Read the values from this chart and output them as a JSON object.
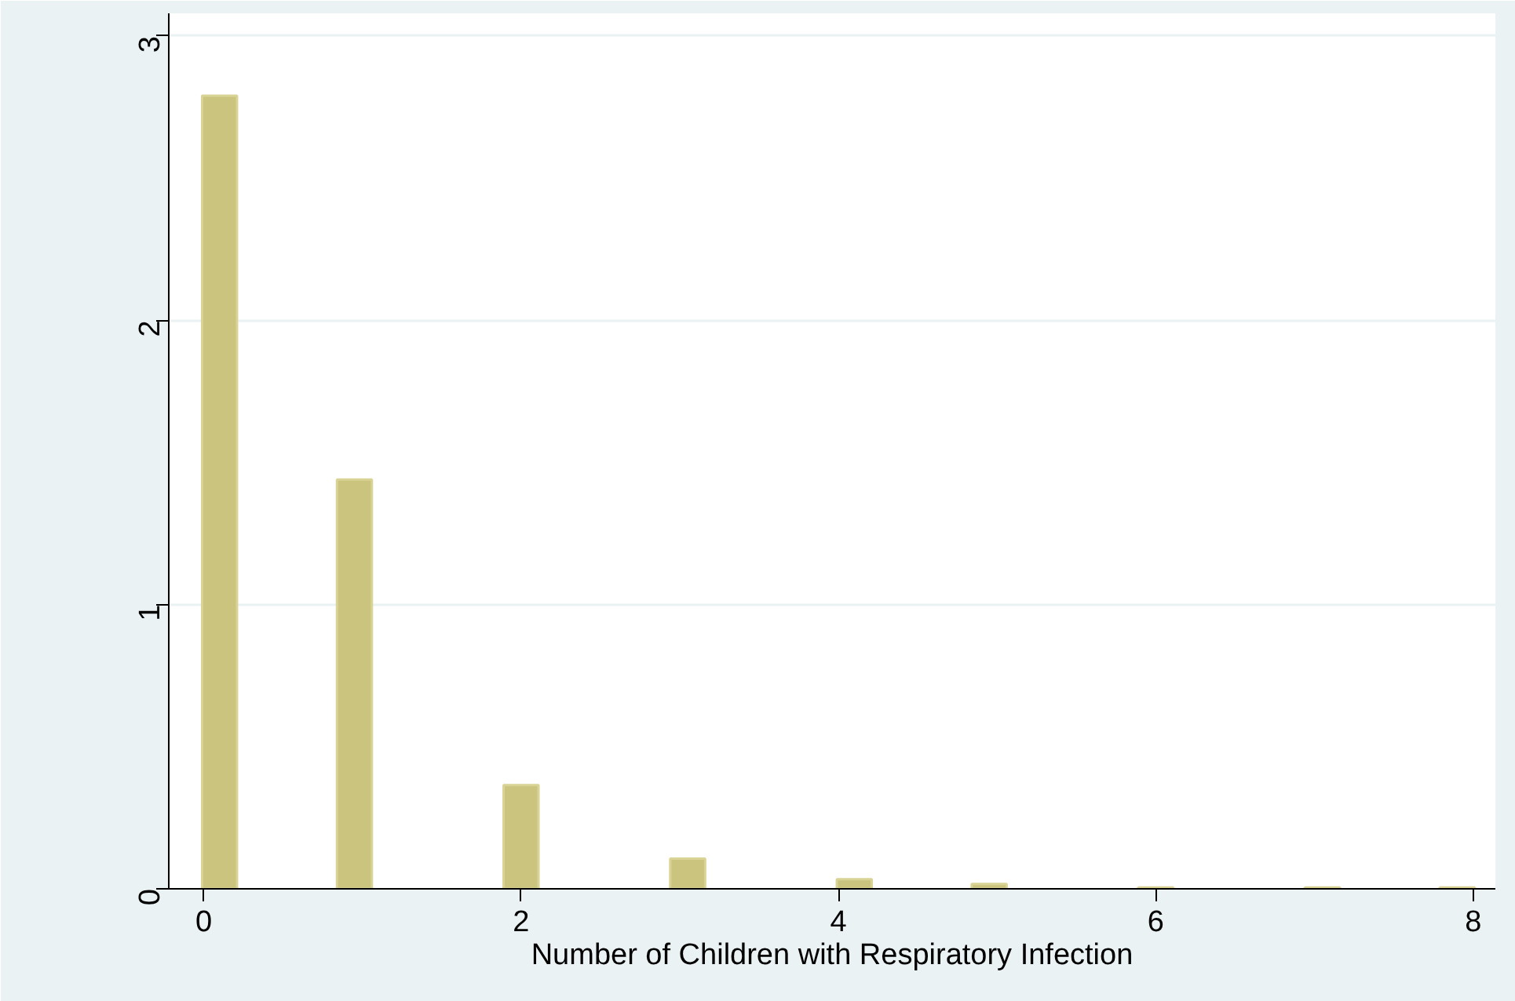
{
  "chart_data": {
    "type": "bar",
    "xlabel": "Number of Children with Respiratory Infection",
    "x": [
      0.1,
      0.95,
      2.0,
      3.05,
      4.1,
      4.95,
      6.0,
      7.05,
      7.9
    ],
    "values": [
      2.79,
      1.44,
      0.365,
      0.106,
      0.034,
      0.017,
      0.005,
      0.005,
      0.005
    ],
    "color": "#cbc47f",
    "xlim": [
      -0.22,
      8.14
    ],
    "xticks": [
      0,
      2,
      4,
      6,
      8
    ],
    "ylim": [
      0,
      3.08
    ],
    "yticks": [
      0,
      1,
      2,
      3
    ],
    "grid": "y"
  }
}
